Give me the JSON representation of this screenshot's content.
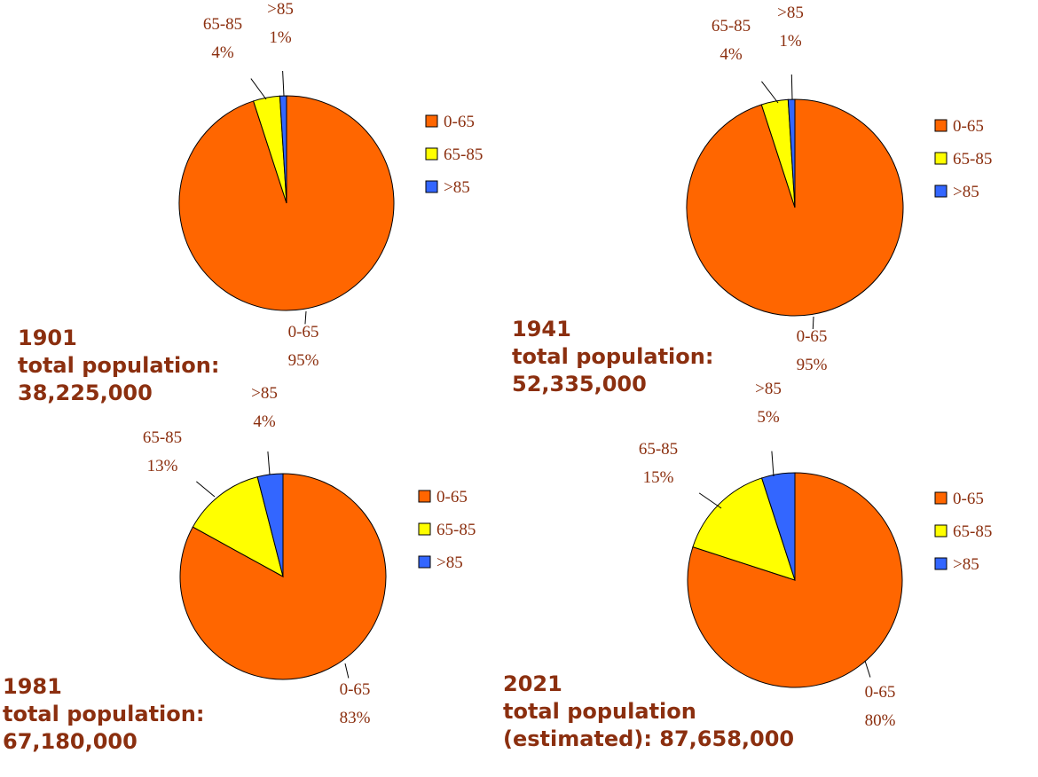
{
  "colors": {
    "0-65": "#ff6600",
    "65-85": "#ffff00",
    ">85": "#3366ff",
    "text": "#8b2f0f"
  },
  "legend": [
    "0-65",
    "65-85",
    ">85"
  ],
  "chart_data": [
    {
      "type": "pie",
      "caption": [
        "1901",
        "total population:",
        "38,225,000"
      ],
      "categories": [
        "0-65",
        "65-85",
        ">85"
      ],
      "values": [
        95,
        4,
        1
      ],
      "slice_labels": [
        {
          "category": "0-65",
          "percent": "95%"
        },
        {
          "category": "65-85",
          "percent": "4%"
        },
        {
          "category": ">85",
          "percent": "1%"
        }
      ]
    },
    {
      "type": "pie",
      "caption": [
        "1941",
        "total population:",
        "52,335,000"
      ],
      "categories": [
        "0-65",
        "65-85",
        ">85"
      ],
      "values": [
        95,
        4,
        1
      ],
      "slice_labels": [
        {
          "category": "0-65",
          "percent": "95%"
        },
        {
          "category": "65-85",
          "percent": "4%"
        },
        {
          "category": ">85",
          "percent": "1%"
        }
      ]
    },
    {
      "type": "pie",
      "caption": [
        "1981",
        "total population:",
        "67,180,000"
      ],
      "categories": [
        "0-65",
        "65-85",
        ">85"
      ],
      "values": [
        83,
        13,
        4
      ],
      "slice_labels": [
        {
          "category": "0-65",
          "percent": "83%"
        },
        {
          "category": "65-85",
          "percent": "13%"
        },
        {
          "category": ">85",
          "percent": "4%"
        }
      ]
    },
    {
      "type": "pie",
      "caption": [
        "2021",
        "total population",
        "(estimated): 87,658,000"
      ],
      "categories": [
        "0-65",
        "65-85",
        ">85"
      ],
      "values": [
        80,
        15,
        5
      ],
      "slice_labels": [
        {
          "category": "0-65",
          "percent": "80%"
        },
        {
          "category": "65-85",
          "percent": "15%"
        },
        {
          "category": ">85",
          "percent": "5%"
        }
      ]
    }
  ]
}
